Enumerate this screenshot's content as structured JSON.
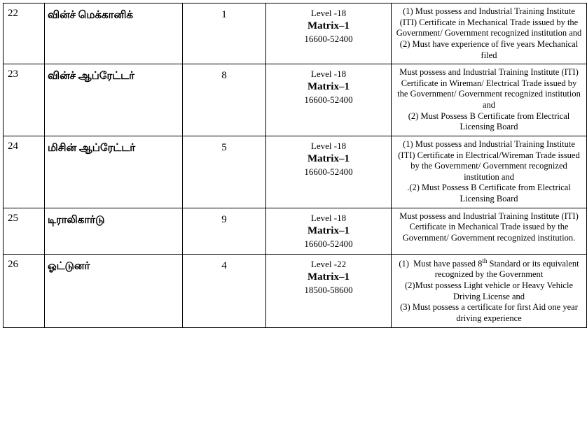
{
  "rows": [
    {
      "sno": "22",
      "post": "வின்ச் மெக்கானிக்",
      "count": "1",
      "level": "Level -18",
      "matrix": "Matrix–1",
      "range": "16600-52400",
      "qual": "(1) Must possess and Industrial Training Institute (ITI) Certificate in Mechanical Trade issued by the Government/ Government recognized institution and\n(2) Must have experience of five years Mechanical filed"
    },
    {
      "sno": "23",
      "post": "வின்ச் ஆப்ரேட்டர்",
      "count": "8",
      "level": "Level -18",
      "matrix": "Matrix–1",
      "range": "16600-52400",
      "qual": "Must possess and Industrial Training Institute (ITI) Certificate in Wireman/ Electrical Trade issued by the Government/ Government recognized institution and\n(2) Must Possess B Certificate from Electrical Licensing Board"
    },
    {
      "sno": "24",
      "post": "மிசின் ஆப்ரேட்டர்",
      "count": "5",
      "level": "Level -18",
      "matrix": "Matrix–1",
      "range": "16600-52400",
      "qual": "(1) Must possess and Industrial Training Institute (ITI) Certificate in Electrical/Wireman Trade issued by the Government/ Government recognized institution and\n.(2) Must Possess B Certificate from Electrical Licensing Board"
    },
    {
      "sno": "25",
      "post": "டிராலிகார்டு",
      "count": "9",
      "level": "Level -18",
      "matrix": "Matrix–1",
      "range": "16600-52400",
      "qual": "Must possess and Industrial Training Institute (ITI) Certificate in Mechanical Trade issued by the Government/ Government recognized institution."
    },
    {
      "sno": "26",
      "post": "ஓட்டுனர்",
      "count": "4",
      "level": "Level -22",
      "matrix": "Matrix–1",
      "range": "18500-58600",
      "qual_html": "(1)  Must have passed 8<sup>th</sup> Standard or its equivalent recognized by the Government<br>(2)Must possess Light vehicle or Heavy Vehicle Driving License and<br>(3) Must possess a certificate for first Aid one year driving experience"
    }
  ]
}
